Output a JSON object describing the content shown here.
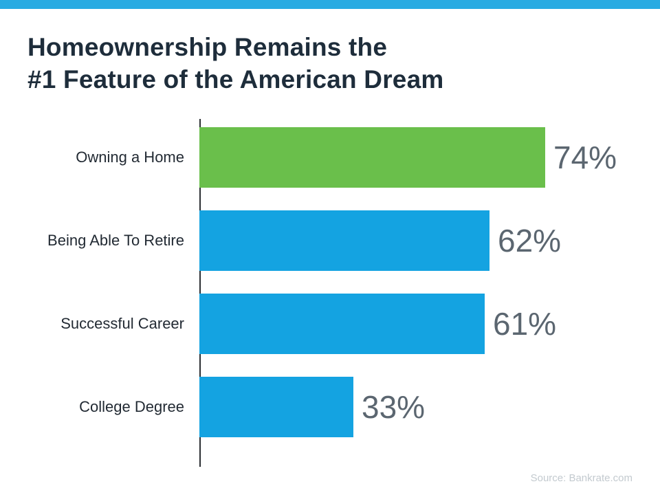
{
  "accent_color": "#29abe2",
  "title": "Homeownership Remains the\n#1 Feature of the American Dream",
  "source": "Source: Bankrate.com",
  "chart_data": {
    "type": "bar",
    "orientation": "horizontal",
    "title": "Homeownership Remains the #1 Feature of the American Dream",
    "categories": [
      "Owning a Home",
      "Being Able To Retire",
      "Successful Career",
      "College Degree"
    ],
    "values": [
      74,
      62,
      61,
      33
    ],
    "value_labels": [
      "74%",
      "62%",
      "61%",
      "33%"
    ],
    "bar_colors": [
      "#6abf4b",
      "#14a3e1",
      "#14a3e1",
      "#14a3e1"
    ],
    "xlim": [
      0,
      100
    ],
    "grid": false,
    "legend": false
  }
}
